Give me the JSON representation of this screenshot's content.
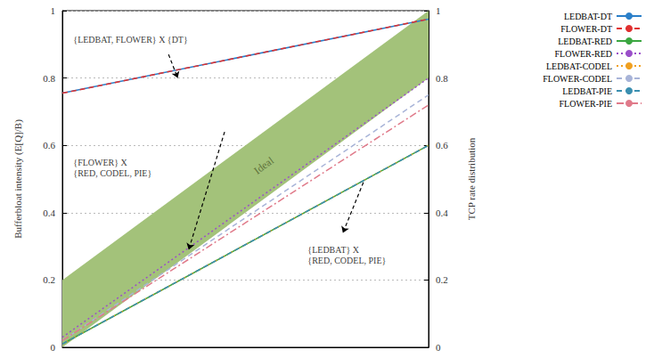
{
  "chart_data": {
    "type": "line",
    "x": [
      0,
      1
    ],
    "xlim": [
      0,
      1
    ],
    "ylim": [
      0,
      1
    ],
    "yticks": [
      0,
      0.2,
      0.4,
      0.6,
      0.8,
      1
    ],
    "y2lim": [
      0,
      1
    ],
    "y2ticks": [
      0,
      0.2,
      0.4,
      0.6,
      0.8,
      1
    ],
    "ylabel": "Bufferbloat intensity (E[Q]/B)",
    "y2label": "TCP rate distribution",
    "grid": true,
    "legend": "top-right",
    "tick_labels": "y",
    "series": [
      {
        "name": "LEDBAT-DT",
        "color": "#2a7fc9",
        "line_style": "solid",
        "values": [
          0.755,
          0.975
        ]
      },
      {
        "name": "FLOWER-DT",
        "color": "#e03030",
        "line_style": "dashed",
        "values": [
          0.755,
          0.975
        ]
      },
      {
        "name": "LEDBAT-RED",
        "color": "#3aa640",
        "line_style": "solid",
        "values": [
          0.01,
          0.6
        ]
      },
      {
        "name": "FLOWER-RED",
        "color": "#9a4fc9",
        "line_style": "dotted",
        "values": [
          0.03,
          0.8
        ]
      },
      {
        "name": "LEDBAT-CODEL",
        "color": "#f0a020",
        "line_style": "dotted",
        "values": [
          0.01,
          0.6
        ]
      },
      {
        "name": "FLOWER-CODEL",
        "color": "#a8b4d8",
        "line_style": "dashed",
        "values": [
          0.02,
          0.75
        ]
      },
      {
        "name": "LEDBAT-PIE",
        "color": "#3a8fb0",
        "line_style": "dashed",
        "values": [
          0.01,
          0.6
        ]
      },
      {
        "name": "FLOWER-PIE",
        "color": "#e07a8a",
        "line_style": "dashdot",
        "values": [
          0.02,
          0.72
        ]
      }
    ],
    "ideal_band": {
      "label": "Ideal",
      "color": "#a3c27a",
      "x": [
        0,
        1
      ],
      "lower": [
        0,
        0.8
      ],
      "upper": [
        0.2,
        1
      ]
    },
    "annotations": [
      {
        "text": "{LEDBAT, FLOWER} X {DT}",
        "text_at": [
          0.03,
          0.913
        ],
        "arrow_from": [
          0.29,
          0.87
        ],
        "arrow_to": [
          0.315,
          0.8
        ]
      },
      {
        "text": "{FLOWER} X\n{RED, CODEL, PIE}",
        "text_at": [
          0.03,
          0.534
        ],
        "arrow_from": [
          0.443,
          0.64
        ],
        "arrow_to": [
          0.345,
          0.29
        ]
      },
      {
        "text": "{LEDBAT} X\n{RED, CODEL, PIE}",
        "text_at": [
          0.67,
          0.275
        ],
        "arrow_from": [
          0.822,
          0.49
        ],
        "arrow_to": [
          0.766,
          0.34
        ]
      }
    ]
  }
}
